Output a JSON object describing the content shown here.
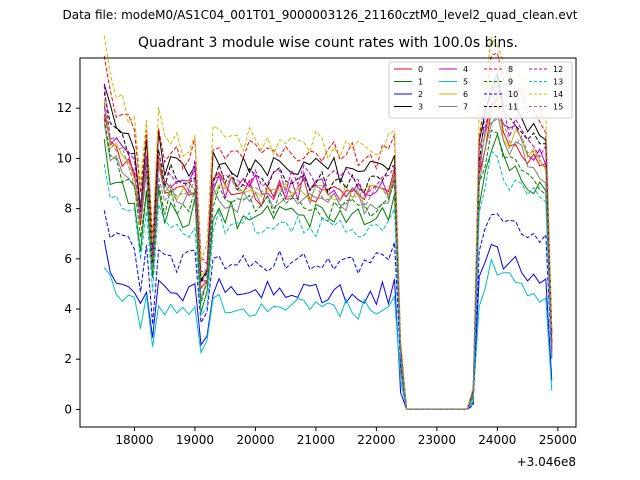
{
  "suptitle": "Data file: modeM0/AS1C04_001T01_9000003126_21160cztM0_level2_quad_clean.evt",
  "chart_data": {
    "type": "line",
    "title": "Quadrant 3 module wise count rates with 100.0s bins.",
    "xlabel": "",
    "ylabel": "",
    "x_offset_label": "+3.046e8",
    "xlim": [
      17100,
      25300
    ],
    "ylim": [
      -0.7,
      14.0
    ],
    "x_ticks": [
      18000,
      19000,
      20000,
      21000,
      22000,
      23000,
      24000,
      25000
    ],
    "y_ticks": [
      0,
      2,
      4,
      6,
      8,
      10,
      12
    ],
    "legend_position": "top-right",
    "series": [
      {
        "name": "0",
        "color": "#ff0000",
        "dash": "solid",
        "offset": 0.0,
        "scale": 1.0,
        "seed": 3
      },
      {
        "name": "1",
        "color": "#008000",
        "dash": "solid",
        "offset": -0.5,
        "scale": 0.95,
        "seed": 7
      },
      {
        "name": "2",
        "color": "#0000ff",
        "dash": "solid",
        "offset": -2.2,
        "scale": 0.78,
        "seed": 11
      },
      {
        "name": "3",
        "color": "#000000",
        "dash": "solid",
        "offset": 0.6,
        "scale": 1.05,
        "seed": 13
      },
      {
        "name": "4",
        "color": "#bf00bf",
        "dash": "solid",
        "offset": 0.2,
        "scale": 1.0,
        "seed": 17
      },
      {
        "name": "5",
        "color": "#00bfbf",
        "dash": "solid",
        "offset": -2.5,
        "scale": 0.75,
        "seed": 19
      },
      {
        "name": "6",
        "color": "#bfbf00",
        "dash": "solid",
        "offset": 0.1,
        "scale": 1.0,
        "seed": 23
      },
      {
        "name": "7",
        "color": "#808080",
        "dash": "solid",
        "offset": -0.1,
        "scale": 0.98,
        "seed": 29
      },
      {
        "name": "8",
        "color": "#ff0000",
        "dash": "dashed",
        "offset": 0.9,
        "scale": 1.08,
        "seed": 31
      },
      {
        "name": "9",
        "color": "#008000",
        "dash": "dashed",
        "offset": -0.3,
        "scale": 0.97,
        "seed": 37
      },
      {
        "name": "10",
        "color": "#0000ff",
        "dash": "dashed",
        "offset": -1.5,
        "scale": 0.85,
        "seed": 41
      },
      {
        "name": "11",
        "color": "#000000",
        "dash": "dashed",
        "offset": 0.4,
        "scale": 1.02,
        "seed": 43
      },
      {
        "name": "12",
        "color": "#bf00bf",
        "dash": "dashed",
        "offset": 0.3,
        "scale": 1.03,
        "seed": 47
      },
      {
        "name": "13",
        "color": "#00bfbf",
        "dash": "dashed",
        "offset": -0.7,
        "scale": 0.92,
        "seed": 53
      },
      {
        "name": "14",
        "color": "#bfbf00",
        "dash": "dashed",
        "offset": 1.2,
        "scale": 1.1,
        "seed": 59
      },
      {
        "name": "15",
        "color": "#808080",
        "dash": "dashed",
        "offset": 0.0,
        "scale": 1.0,
        "seed": 61
      }
    ],
    "profile": {
      "x": [
        17500,
        17600,
        17700,
        17800,
        17900,
        18000,
        18100,
        18200,
        18300,
        18400,
        18500,
        18600,
        18700,
        18800,
        18900,
        19000,
        19100,
        19200,
        19300,
        19400,
        19500,
        19600,
        19700,
        19800,
        19900,
        20000,
        20100,
        20200,
        20300,
        20400,
        20500,
        20600,
        20700,
        20800,
        20900,
        21000,
        21100,
        21200,
        21300,
        21400,
        21500,
        21600,
        21700,
        21800,
        21900,
        22000,
        22100,
        22200,
        22300,
        22400,
        22500,
        22600,
        22700,
        22800,
        22900,
        23000,
        23100,
        23200,
        23300,
        23400,
        23500,
        23600,
        23700,
        23800,
        23900,
        24000,
        24100,
        24200,
        24300,
        24400,
        24500,
        24600,
        24700,
        24800,
        24900
      ],
      "y": [
        12.0,
        10.5,
        10.2,
        10.0,
        9.6,
        9.2,
        7.5,
        9.5,
        5.5,
        9.6,
        8.6,
        8.9,
        8.6,
        8.5,
        8.6,
        9.0,
        4.8,
        5.2,
        8.8,
        9.0,
        8.6,
        8.8,
        8.5,
        8.6,
        8.8,
        8.7,
        8.5,
        8.7,
        8.6,
        8.8,
        8.5,
        8.7,
        8.6,
        8.8,
        8.5,
        8.7,
        8.6,
        8.4,
        8.7,
        8.5,
        8.6,
        8.7,
        8.5,
        8.4,
        8.6,
        8.5,
        8.7,
        8.6,
        9.3,
        2.0,
        0.0,
        0.0,
        0.0,
        0.0,
        0.0,
        0.0,
        0.0,
        0.0,
        0.0,
        0.0,
        0.0,
        0.4,
        9.5,
        10.8,
        11.8,
        12.0,
        11.0,
        10.6,
        10.8,
        10.5,
        10.2,
        10.0,
        9.8,
        9.6,
        2.5
      ]
    }
  }
}
